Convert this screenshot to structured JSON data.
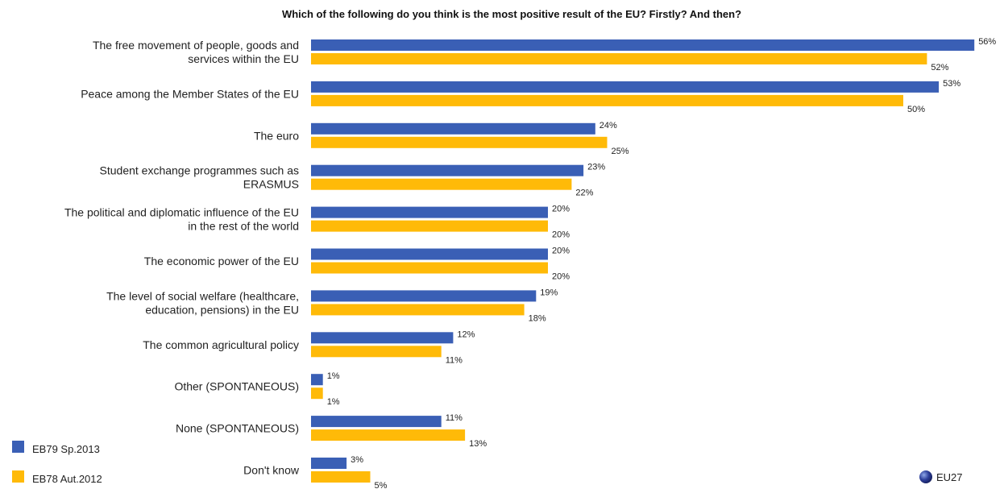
{
  "chart_data": {
    "type": "bar",
    "orientation": "horizontal",
    "title": "Which of the following do you think is the most positive result of the EU? Firstly? And then?",
    "categories": [
      [
        "The free movement of people, goods and",
        "services within the EU"
      ],
      [
        "Peace among the Member States of the EU"
      ],
      [
        "The euro"
      ],
      [
        "Student exchange programmes such as",
        "ERASMUS"
      ],
      [
        "The political and diplomatic influence of the EU",
        "in the rest of the world"
      ],
      [
        "The economic power of the EU"
      ],
      [
        "The level of social welfare (healthcare,",
        "education, pensions) in the EU"
      ],
      [
        "The common agricultural policy"
      ],
      [
        "Other (SPONTANEOUS)"
      ],
      [
        "None (SPONTANEOUS)"
      ],
      [
        "Don't know"
      ]
    ],
    "series": [
      {
        "name": "EB79 Sp.2013",
        "color": "#3a5fb5",
        "values": [
          56,
          53,
          24,
          23,
          20,
          20,
          19,
          12,
          1,
          11,
          3
        ]
      },
      {
        "name": "EB78 Aut.2012",
        "color": "#ffba08",
        "values": [
          52,
          50,
          25,
          22,
          20,
          20,
          18,
          11,
          1,
          13,
          5
        ]
      }
    ],
    "value_suffix": "%",
    "xlim": [
      0,
      56
    ],
    "legend_position": "bottom-left",
    "badge": {
      "label": "EU27",
      "icon": "globe-icon"
    }
  }
}
